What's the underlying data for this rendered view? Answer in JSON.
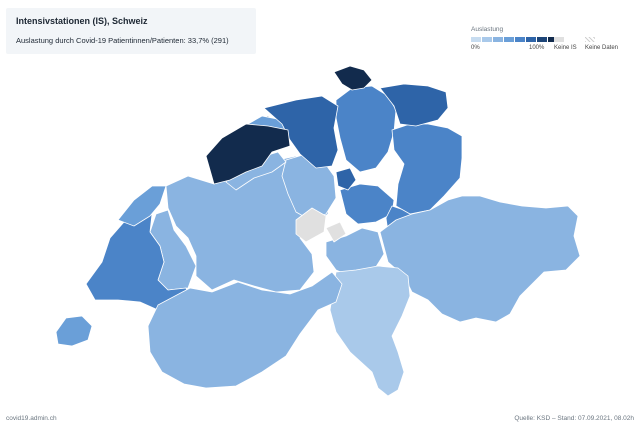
{
  "header": {
    "title": "Intensivstationen (IS), Schweiz",
    "subtitle": "Auslastung durch Covid-19 Patientinnen/Patienten: 33,7% (291)"
  },
  "legend": {
    "title": "Auslastung",
    "min_label": "0%",
    "max_label": "100%",
    "no_icu_label": "Keine IS",
    "no_data_label": "Keine Daten",
    "scale_colors": [
      "#c7dcf0",
      "#a9c9ea",
      "#8ab4e1",
      "#6a9fd8",
      "#4b84c8",
      "#2e64a8",
      "#1d4578",
      "#122b4d"
    ]
  },
  "colors": {
    "no_icu": "#e0e0e0",
    "border": "#ffffff"
  },
  "regions": [
    {
      "id": "ZH",
      "level": 4
    },
    {
      "id": "BE",
      "level": 2
    },
    {
      "id": "LU",
      "level": 2
    },
    {
      "id": "UR",
      "level": 2
    },
    {
      "id": "SZ",
      "level": 4
    },
    {
      "id": "OW",
      "level": "no_icu"
    },
    {
      "id": "NW",
      "level": "no_icu"
    },
    {
      "id": "GL",
      "level": 4
    },
    {
      "id": "ZG",
      "level": 5
    },
    {
      "id": "FR",
      "level": 2
    },
    {
      "id": "SO",
      "level": 2
    },
    {
      "id": "BS",
      "level": 7
    },
    {
      "id": "BL",
      "level": 3
    },
    {
      "id": "SH",
      "level": 7
    },
    {
      "id": "AR",
      "level": "no_data"
    },
    {
      "id": "AI",
      "level": "no_icu"
    },
    {
      "id": "SG",
      "level": 4
    },
    {
      "id": "GR",
      "level": 2
    },
    {
      "id": "AG",
      "level": 5
    },
    {
      "id": "TG",
      "level": 5
    },
    {
      "id": "TI",
      "level": 1
    },
    {
      "id": "VD",
      "level": 4
    },
    {
      "id": "VS",
      "level": 2
    },
    {
      "id": "NE",
      "level": 3
    },
    {
      "id": "GE",
      "level": 3
    },
    {
      "id": "JU",
      "level": 7
    }
  ],
  "footer": {
    "source_left": "covid19.admin.ch",
    "source_right": "Quelle: KSD – Stand: 07.09.2021, 08.02h"
  }
}
